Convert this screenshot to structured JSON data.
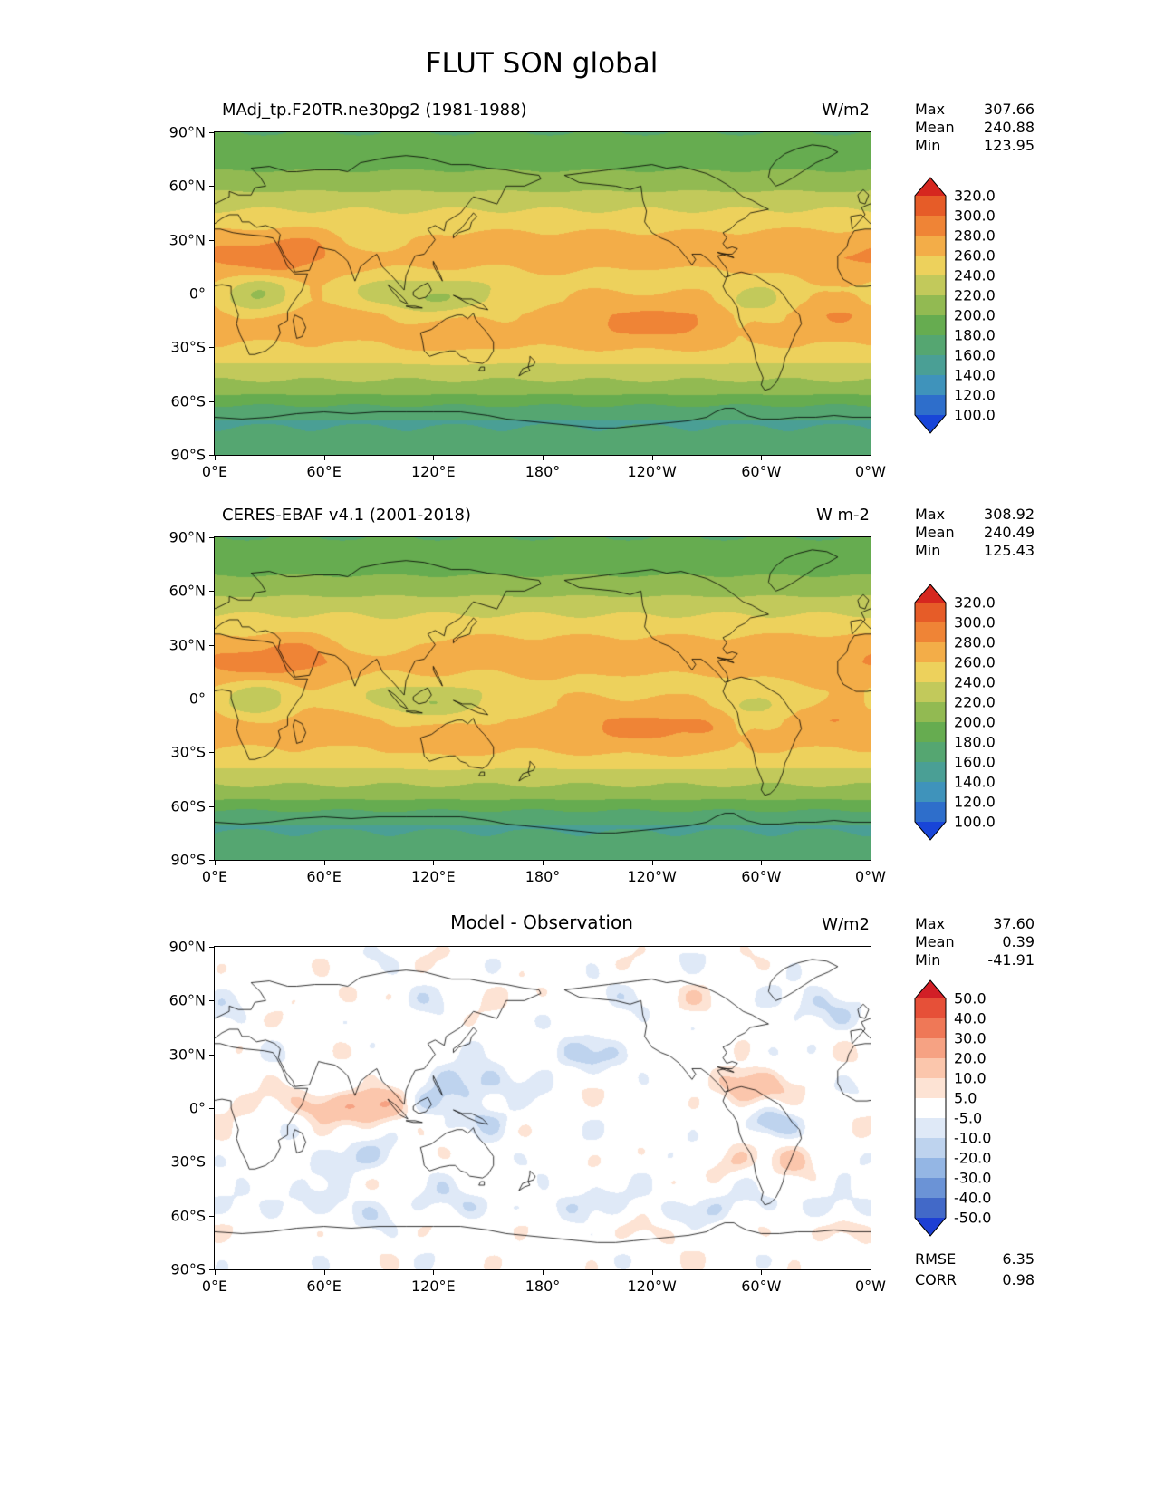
{
  "chart_data": {
    "type": "heatmap",
    "suptitle": "FLUT SON global",
    "projection": "equirectangular global map, longitude 0E to 0W (360 span), latitude 90N to 90S",
    "lon_ticks": [
      "0°E",
      "60°E",
      "120°E",
      "180°",
      "120°W",
      "60°W",
      "0°W"
    ],
    "lat_ticks": [
      "90°N",
      "60°N",
      "30°N",
      "0°",
      "30°S",
      "60°S",
      "90°S"
    ],
    "panels": [
      {
        "id": "model",
        "title": "MAdj_tp.F20TR.ne30pg2 (1981-1988)",
        "units": "W/m2",
        "stats": [
          [
            "Max",
            "307.66"
          ],
          [
            "Mean",
            "240.88"
          ],
          [
            "Min",
            "123.95"
          ]
        ],
        "field": "olr_model",
        "description": "Model outgoing longwave radiation climatology: 260-300 W/m2 (orange) over subtropical deserts and eastern Pacific, 200-240 (yellow-green) over convective tropics, 140-200 (green/teal) poleward of 60 degrees.",
        "colorbar": {
          "extend": "both",
          "levels": [
            100,
            120,
            140,
            160,
            180,
            200,
            220,
            240,
            260,
            280,
            300,
            320
          ],
          "tick_labels": [
            "320.0",
            "300.0",
            "280.0",
            "260.0",
            "240.0",
            "220.0",
            "200.0",
            "180.0",
            "160.0",
            "140.0",
            "120.0",
            "100.0"
          ],
          "colors_top_to_bottom": [
            "#d6271f",
            "#e65c28",
            "#ef8436",
            "#f3ad48",
            "#edd15c",
            "#c2c95b",
            "#92ba52",
            "#66ac50",
            "#55a671",
            "#4a9f95",
            "#3f93bb",
            "#2e6ecb",
            "#1845d8"
          ]
        }
      },
      {
        "id": "observation",
        "title": "CERES-EBAF v4.1 (2001-2018)",
        "units": "W m-2",
        "stats": [
          [
            "Max",
            "308.92"
          ],
          [
            "Mean",
            "240.49"
          ],
          [
            "Min",
            "125.43"
          ]
        ],
        "field": "olr_obs",
        "description": "Observed CERES-EBAF outgoing longwave radiation climatology with same spatial pattern as the model panel.",
        "colorbar": {
          "extend": "both",
          "levels": [
            100,
            120,
            140,
            160,
            180,
            200,
            220,
            240,
            260,
            280,
            300,
            320
          ],
          "tick_labels": [
            "320.0",
            "300.0",
            "280.0",
            "260.0",
            "240.0",
            "220.0",
            "200.0",
            "180.0",
            "160.0",
            "140.0",
            "120.0",
            "100.0"
          ],
          "colors_top_to_bottom": [
            "#d6271f",
            "#e65c28",
            "#ef8436",
            "#f3ad48",
            "#edd15c",
            "#c2c95b",
            "#92ba52",
            "#66ac50",
            "#55a671",
            "#4a9f95",
            "#3f93bb",
            "#2e6ecb",
            "#1845d8"
          ]
        }
      },
      {
        "id": "difference",
        "title": "Model - Observation",
        "units": "W/m2",
        "stats": [
          [
            "Max",
            "37.60"
          ],
          [
            "Mean",
            "0.39"
          ],
          [
            "Min",
            "-41.91"
          ]
        ],
        "metrics": [
          [
            "RMSE",
            "6.35"
          ],
          [
            "CORR",
            "0.98"
          ]
        ],
        "field": "diff",
        "description": "Model minus observation bias map: mostly within +/-5 W/m2 (white), positive biases (red) over the equatorial Indian Ocean and Caribbean, negative biases (blue) over the northwest Pacific, Amazon outflow and the Southern Ocean storm track.",
        "colorbar": {
          "extend": "both",
          "levels": [
            -50,
            -40,
            -30,
            -20,
            -10,
            -5,
            5,
            10,
            20,
            30,
            40,
            50
          ],
          "tick_labels": [
            "50.0",
            "40.0",
            "30.0",
            "20.0",
            "10.0",
            "5.0",
            "-5.0",
            "-10.0",
            "-20.0",
            "-30.0",
            "-40.0",
            "-50.0"
          ],
          "colors_top_to_bottom": [
            "#d21f26",
            "#e65038",
            "#ef7857",
            "#f6a283",
            "#fbc6ac",
            "#fde3d4",
            "#ffffff",
            "#dfe9f7",
            "#bed3ee",
            "#94b6e4",
            "#6b93d6",
            "#4269c8",
            "#1c3fd4"
          ]
        }
      }
    ]
  }
}
